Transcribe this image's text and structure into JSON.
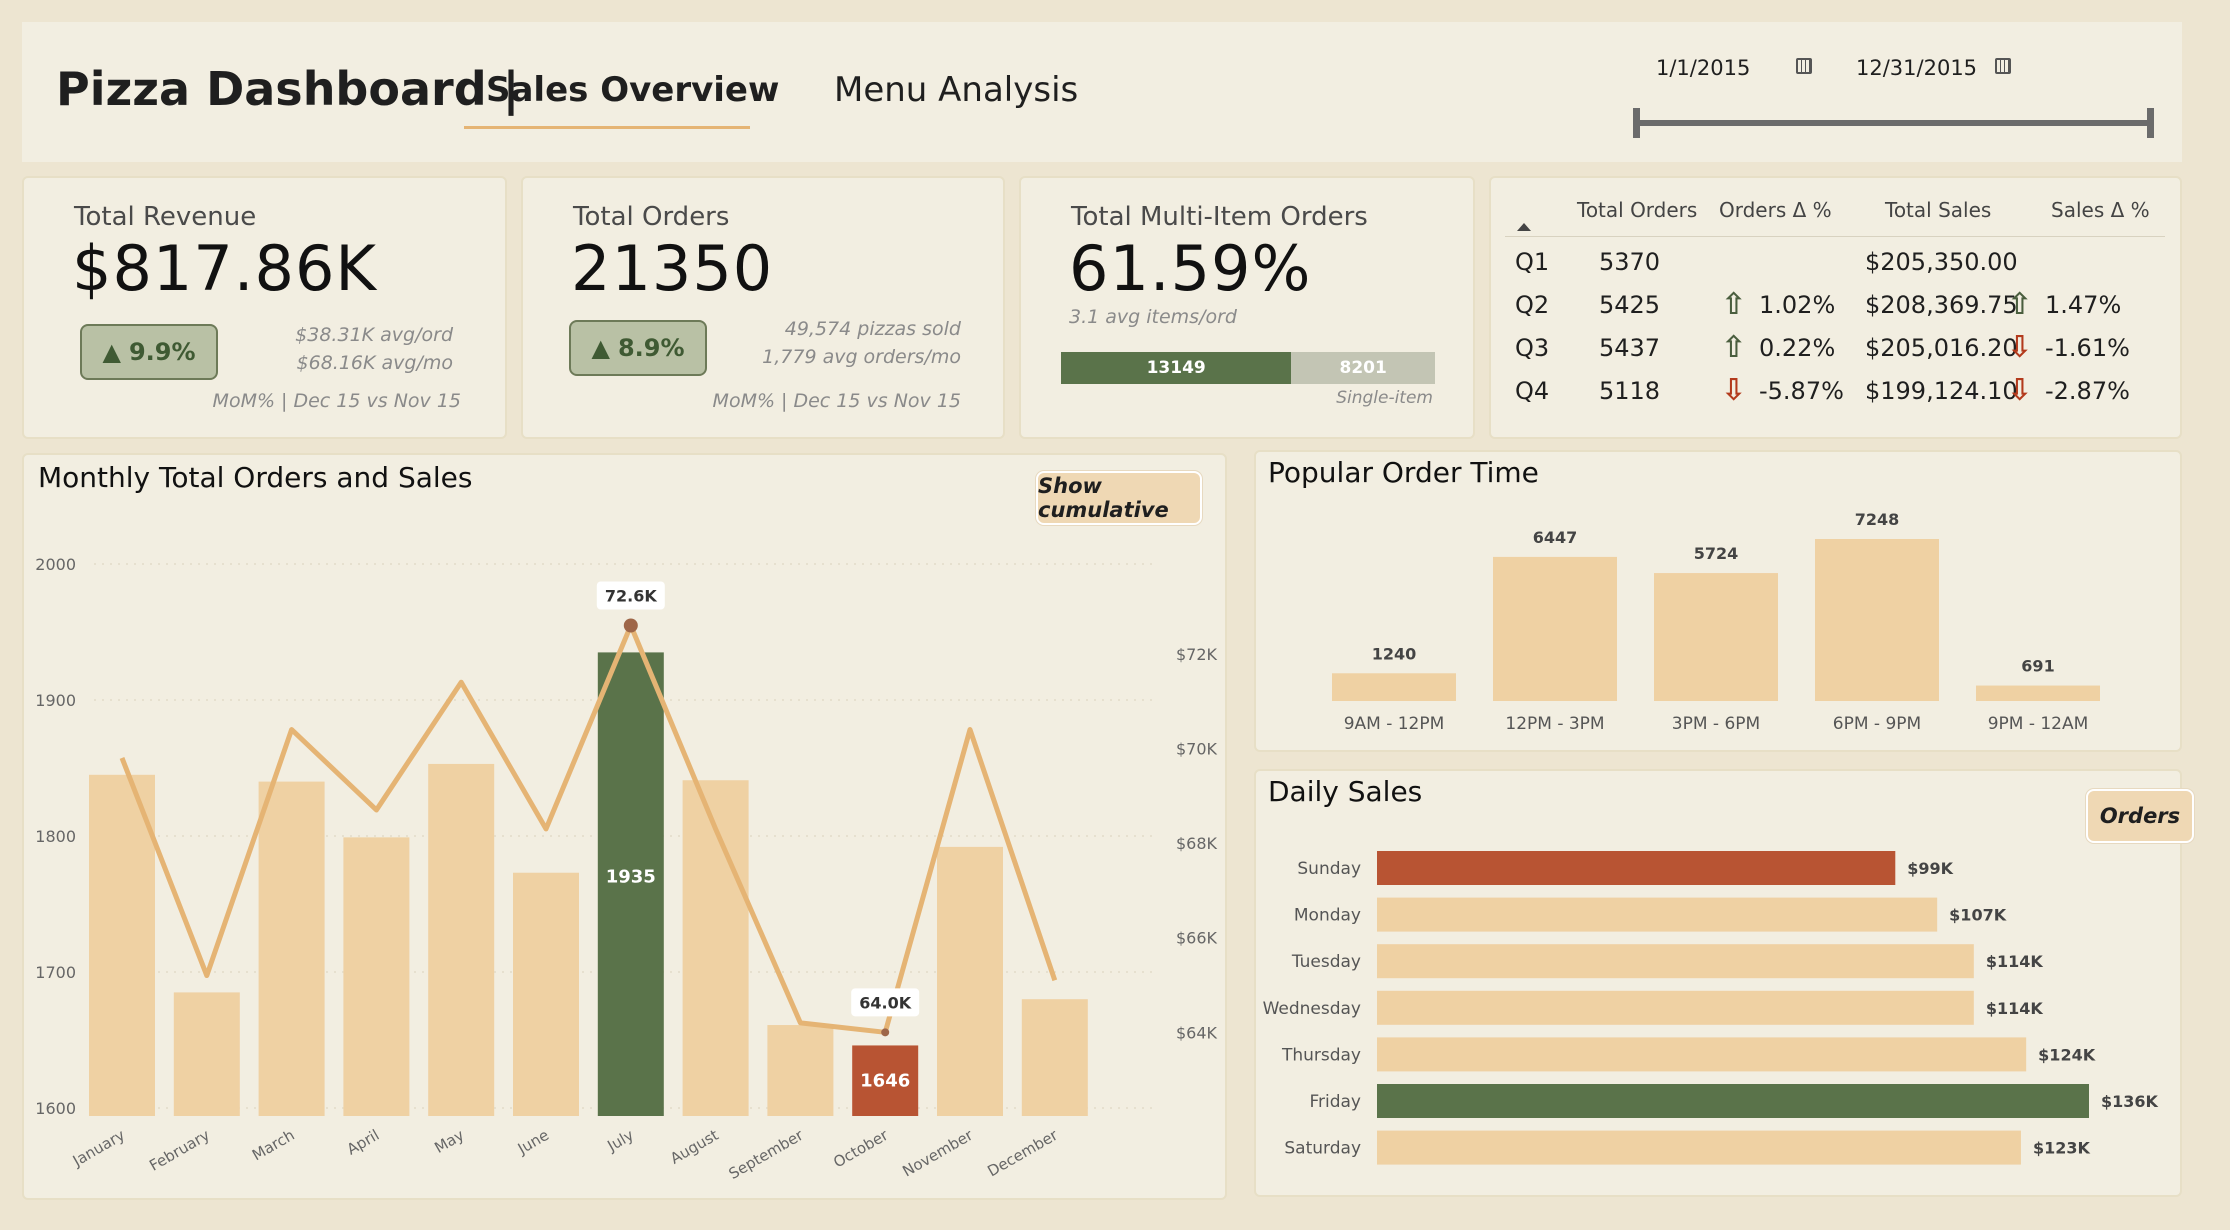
{
  "header": {
    "title": "Pizza Dashboard |",
    "tabs": [
      {
        "label": "Sales Overview",
        "active": true
      },
      {
        "label": "Menu Analysis",
        "active": false
      }
    ],
    "date_from": "1/1/2015",
    "date_to": "12/31/2015"
  },
  "kpis": {
    "revenue": {
      "label": "Total Revenue",
      "value": "$817.86K",
      "delta": "9.9%",
      "note1": "$38.31K avg/ord",
      "note2": "$68.16K avg/mo",
      "footer": "MoM% | Dec 15 vs Nov 15"
    },
    "orders": {
      "label": "Total Orders",
      "value": "21350",
      "delta": "8.9%",
      "note1": "49,574 pizzas sold",
      "note2": "1,779 avg orders/mo",
      "footer": "MoM% | Dec 15 vs Nov 15"
    },
    "multi": {
      "label": "Total Multi-Item Orders",
      "value": "61.59%",
      "sub": "3.1 avg items/ord",
      "multi_count": "13149",
      "single_count": "8201",
      "multi_share": 0.6159,
      "single_label": "Single-item"
    }
  },
  "quarter_table": {
    "headers": [
      "Total Orders",
      "Orders Δ %",
      "Total Sales",
      "Sales Δ %"
    ],
    "rows": [
      {
        "q": "Q1",
        "orders": "5370",
        "orders_delta": "",
        "orders_dir": "",
        "sales": "$205,350.00",
        "sales_delta": "",
        "sales_dir": ""
      },
      {
        "q": "Q2",
        "orders": "5425",
        "orders_delta": "1.02%",
        "orders_dir": "up",
        "sales": "$208,369.75",
        "sales_delta": "1.47%",
        "sales_dir": "up"
      },
      {
        "q": "Q3",
        "orders": "5437",
        "orders_delta": "0.22%",
        "orders_dir": "up",
        "sales": "$205,016.20",
        "sales_delta": "-1.61%",
        "sales_dir": "down"
      },
      {
        "q": "Q4",
        "orders": "5118",
        "orders_delta": "-5.87%",
        "orders_dir": "down",
        "sales": "$199,124.10",
        "sales_delta": "-2.87%",
        "sales_dir": "down"
      }
    ]
  },
  "monthly": {
    "title": "Monthly Total Orders and Sales",
    "toggle_label": "Show cumulative"
  },
  "popular": {
    "title": "Popular Order Time"
  },
  "daily": {
    "title": "Daily Sales",
    "toggle_label": "Orders"
  },
  "colors": {
    "bar": "#efd1a3",
    "line": "#e5b474",
    "highlight_max": "#5a734a",
    "highlight_min": "#b85433",
    "up_arrow": "#4a5e3e",
    "down_arrow": "#b33a1c"
  },
  "chart_data": [
    {
      "type": "bar",
      "title": "Monthly Total Orders and Sales",
      "categories": [
        "January",
        "February",
        "March",
        "April",
        "May",
        "June",
        "July",
        "August",
        "September",
        "October",
        "November",
        "December"
      ],
      "series": [
        {
          "axis": "left",
          "values": [
            1845,
            1685,
            1840,
            1799,
            1853,
            1773,
            1935,
            1841,
            1661,
            1646,
            1792,
            1680
          ],
          "data_labels": {
            "6": "1935",
            "9": "1646"
          }
        },
        {
          "axis": "right",
          "chart": "line",
          "values": [
            69.8,
            65.2,
            70.4,
            68.7,
            71.4,
            68.3,
            72.6,
            68.3,
            64.2,
            64.0,
            70.4,
            65.1
          ],
          "data_labels": {
            "6": "72.6K",
            "9": "64.0K"
          }
        }
      ],
      "y_left": {
        "ticks": [
          "1600",
          "1700",
          "1800",
          "1900",
          "2000"
        ],
        "range": [
          1600,
          2000
        ]
      },
      "y_right": {
        "ticks": [
          "$64K",
          "$66K",
          "$68K",
          "$70K",
          "$72K"
        ],
        "range": [
          62.4,
          73.9
        ]
      },
      "grid": "dotted"
    },
    {
      "type": "bar",
      "title": "Popular Order Time",
      "categories": [
        "9AM - 12PM",
        "12PM - 3PM",
        "3PM - 6PM",
        "6PM - 9PM",
        "9PM - 12AM"
      ],
      "values": [
        1240,
        6447,
        5724,
        7248,
        691
      ],
      "labels": [
        "1240",
        "6447",
        "5724",
        "7248",
        "691"
      ]
    },
    {
      "type": "bar",
      "orientation": "horizontal",
      "title": "Daily Sales",
      "categories": [
        "Sunday",
        "Monday",
        "Tuesday",
        "Wednesday",
        "Thursday",
        "Friday",
        "Saturday"
      ],
      "values": [
        99,
        107,
        114,
        114,
        124,
        136,
        123
      ],
      "labels": [
        "$99K",
        "$107K",
        "$114K",
        "$114K",
        "$124K",
        "$136K",
        "$123K"
      ]
    }
  ]
}
